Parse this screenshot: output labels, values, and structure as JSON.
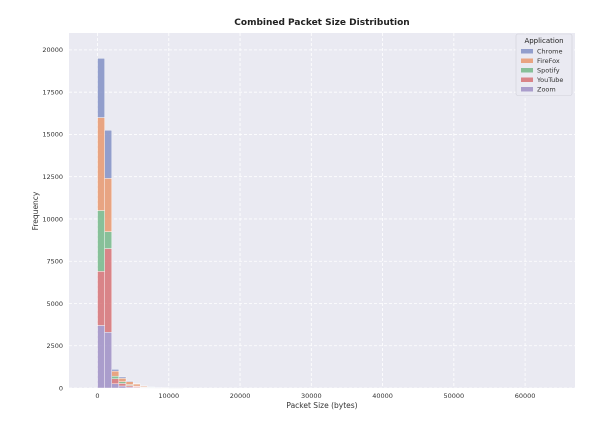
{
  "chart_data": {
    "type": "bar",
    "stacked": true,
    "title": "Combined Packet Size Distribution",
    "xlabel": "Packet Size (bytes)",
    "ylabel": "Frequency",
    "xlim": [
      -4000,
      67000
    ],
    "ylim": [
      0,
      21000
    ],
    "xticks": [
      0,
      10000,
      20000,
      30000,
      40000,
      50000,
      60000
    ],
    "yticks": [
      0,
      2500,
      5000,
      7500,
      10000,
      12500,
      15000,
      17500,
      20000
    ],
    "grid": true,
    "bin_width": 1000,
    "bins": [
      0,
      1000,
      2000,
      3000,
      4000,
      5000,
      6000,
      7000,
      8000,
      9000,
      10000,
      11000
    ],
    "legend": {
      "title": "Application",
      "placement": "top-right"
    },
    "series": [
      {
        "name": "Zoom",
        "color": "#9f8fc6",
        "values": [
          3700,
          3300,
          250,
          120,
          60,
          30,
          15,
          8,
          5,
          3,
          2,
          1
        ]
      },
      {
        "name": "YouTube",
        "color": "#d67276",
        "values": [
          3200,
          4950,
          300,
          150,
          90,
          60,
          30,
          15,
          8,
          4,
          2,
          1
        ]
      },
      {
        "name": "Spotify",
        "color": "#76b88a",
        "values": [
          3600,
          1000,
          150,
          100,
          50,
          25,
          15,
          8,
          4,
          2,
          1,
          0
        ]
      },
      {
        "name": "FireFox",
        "color": "#e8986f",
        "values": [
          5500,
          3150,
          300,
          200,
          180,
          120,
          60,
          25,
          12,
          8,
          4,
          2
        ]
      },
      {
        "name": "Chrome",
        "color": "#8391c6",
        "values": [
          3500,
          2850,
          100,
          80,
          40,
          20,
          10,
          5,
          3,
          2,
          1,
          1
        ]
      }
    ],
    "legend_order": [
      "Chrome",
      "FireFox",
      "Spotify",
      "YouTube",
      "Zoom"
    ]
  }
}
